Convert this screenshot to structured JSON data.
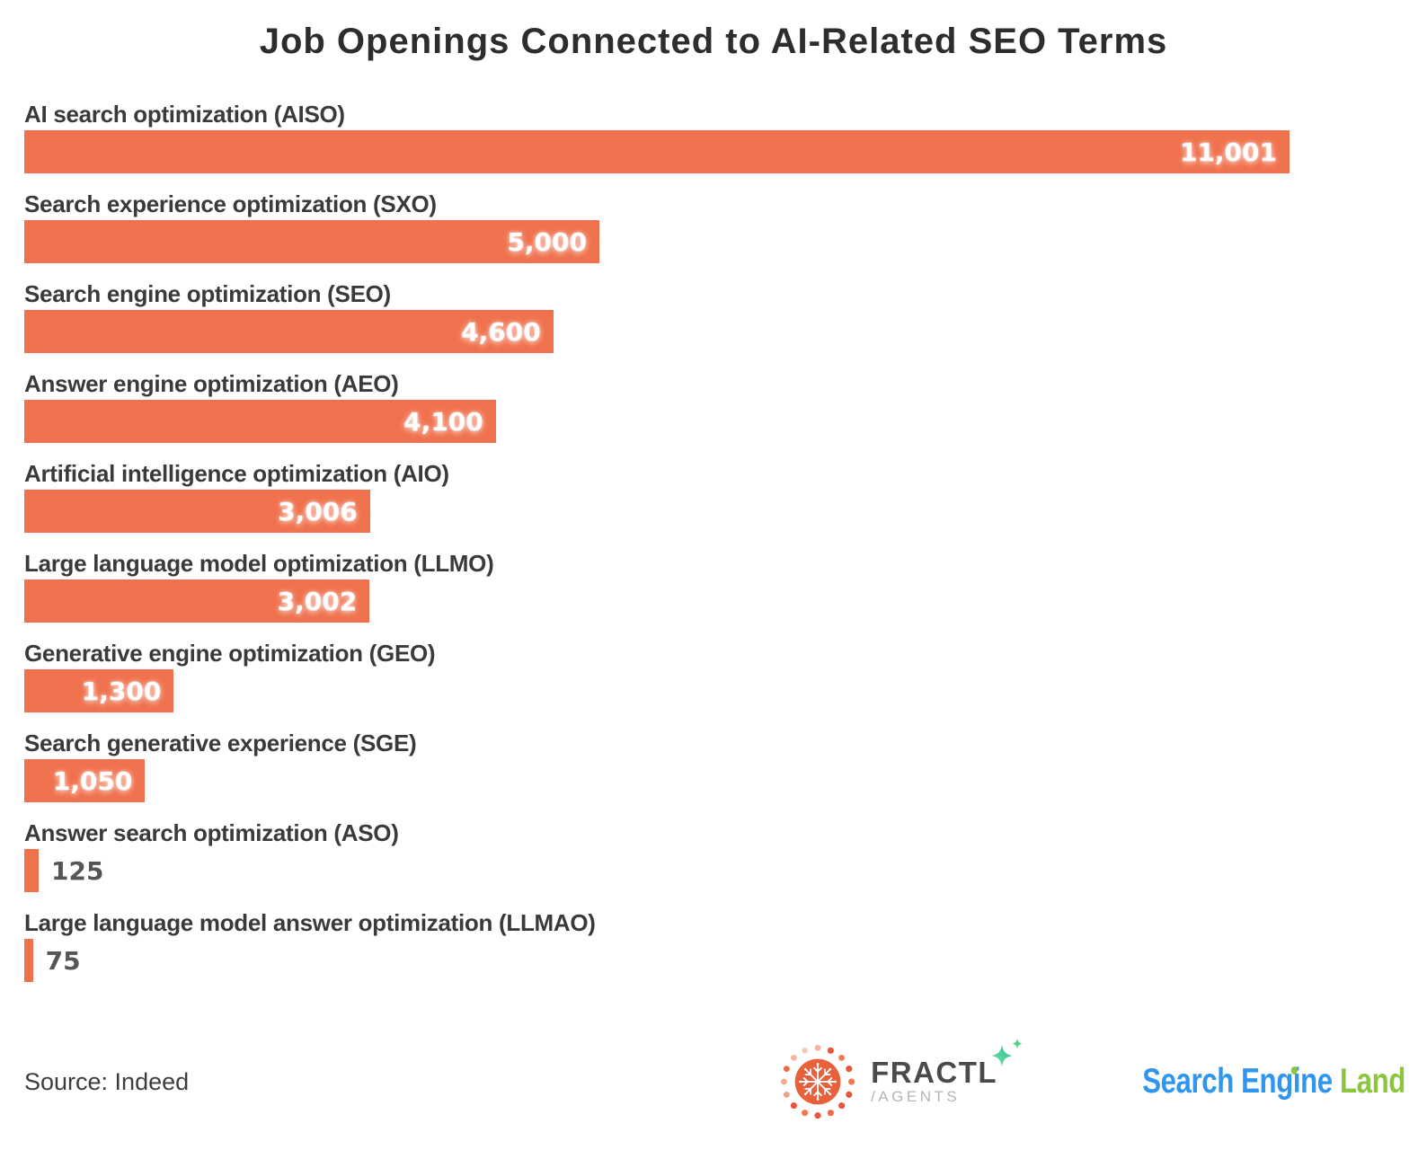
{
  "title": "Job Openings Connected to AI-Related SEO Terms",
  "chart_data": {
    "type": "bar",
    "orientation": "horizontal",
    "title": "Job Openings Connected to AI-Related SEO Terms",
    "categories": [
      "AI search optimization (AISO)",
      "Search experience optimization (SXO)",
      "Search engine optimization (SEO)",
      "Answer engine optimization (AEO)",
      "Artificial intelligence optimization (AIO)",
      "Large language model optimization (LLMO)",
      "Generative engine optimization (GEO)",
      "Search generative experience (SGE)",
      "Answer search optimization (ASO)",
      "Large language model answer optimization (LLMAO)"
    ],
    "values": [
      11001,
      5000,
      4600,
      4100,
      3006,
      3002,
      1300,
      1050,
      125,
      75
    ],
    "value_labels": [
      "11,001",
      "5,000",
      "4,600",
      "4,100",
      "3,006",
      "3,002",
      "1,300",
      "1,050",
      "125",
      "75"
    ],
    "xlim": [
      0,
      11001
    ],
    "bar_color": "#F0714D",
    "grid": false,
    "legend": false,
    "value_label_inside_threshold": 600
  },
  "footer": {
    "source": "Source: Indeed",
    "fractl": {
      "name": "FRACTL",
      "sub": "/AGENTS"
    },
    "search_engine_land": {
      "part1": "Search Engine",
      "part2": "Land"
    }
  },
  "colors": {
    "bar": "#F0714D",
    "title_text": "#2d2d2d",
    "label_text": "#3a3a3a",
    "value_inside": "#ffffff",
    "value_outside": "#555555",
    "source_text": "#3d3d3d",
    "sel_blue": "#2e96ee",
    "sel_green": "#8cc63f",
    "fractl_text": "#4a4a4a",
    "fractl_sub": "#b5b5b5",
    "fractl_orange": "#e8603c",
    "sparkle_green": "#3ecf8e"
  }
}
